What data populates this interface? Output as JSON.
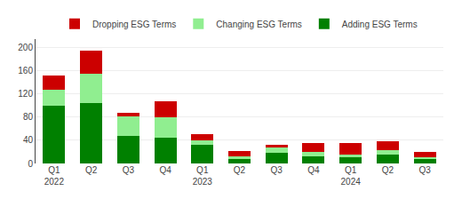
{
  "chart_data": {
    "type": "bar",
    "stacked": true,
    "categories": [
      "Q1\n2022",
      "Q2",
      "Q3",
      "Q4",
      "Q1\n2023",
      "Q2",
      "Q3",
      "Q4",
      "Q1\n2024",
      "Q2",
      "Q3"
    ],
    "series": [
      {
        "name": "Adding ESG Terms",
        "color": "#008000",
        "values": [
          100,
          105,
          47,
          45,
          32,
          8,
          18,
          12,
          10,
          15,
          8
        ]
      },
      {
        "name": "Changing ESG Terms",
        "color": "#90EE90",
        "values": [
          28,
          50,
          35,
          35,
          8,
          5,
          10,
          8,
          5,
          8,
          2
        ]
      },
      {
        "name": "Dropping ESG Terms",
        "color": "#cc0000",
        "values": [
          24,
          40,
          5,
          28,
          10,
          8,
          5,
          15,
          20,
          15,
          10
        ]
      }
    ],
    "ylim": [
      0,
      215
    ],
    "yticks": [
      0,
      40,
      80,
      120,
      160,
      200
    ],
    "grid": true,
    "legend": "top"
  }
}
